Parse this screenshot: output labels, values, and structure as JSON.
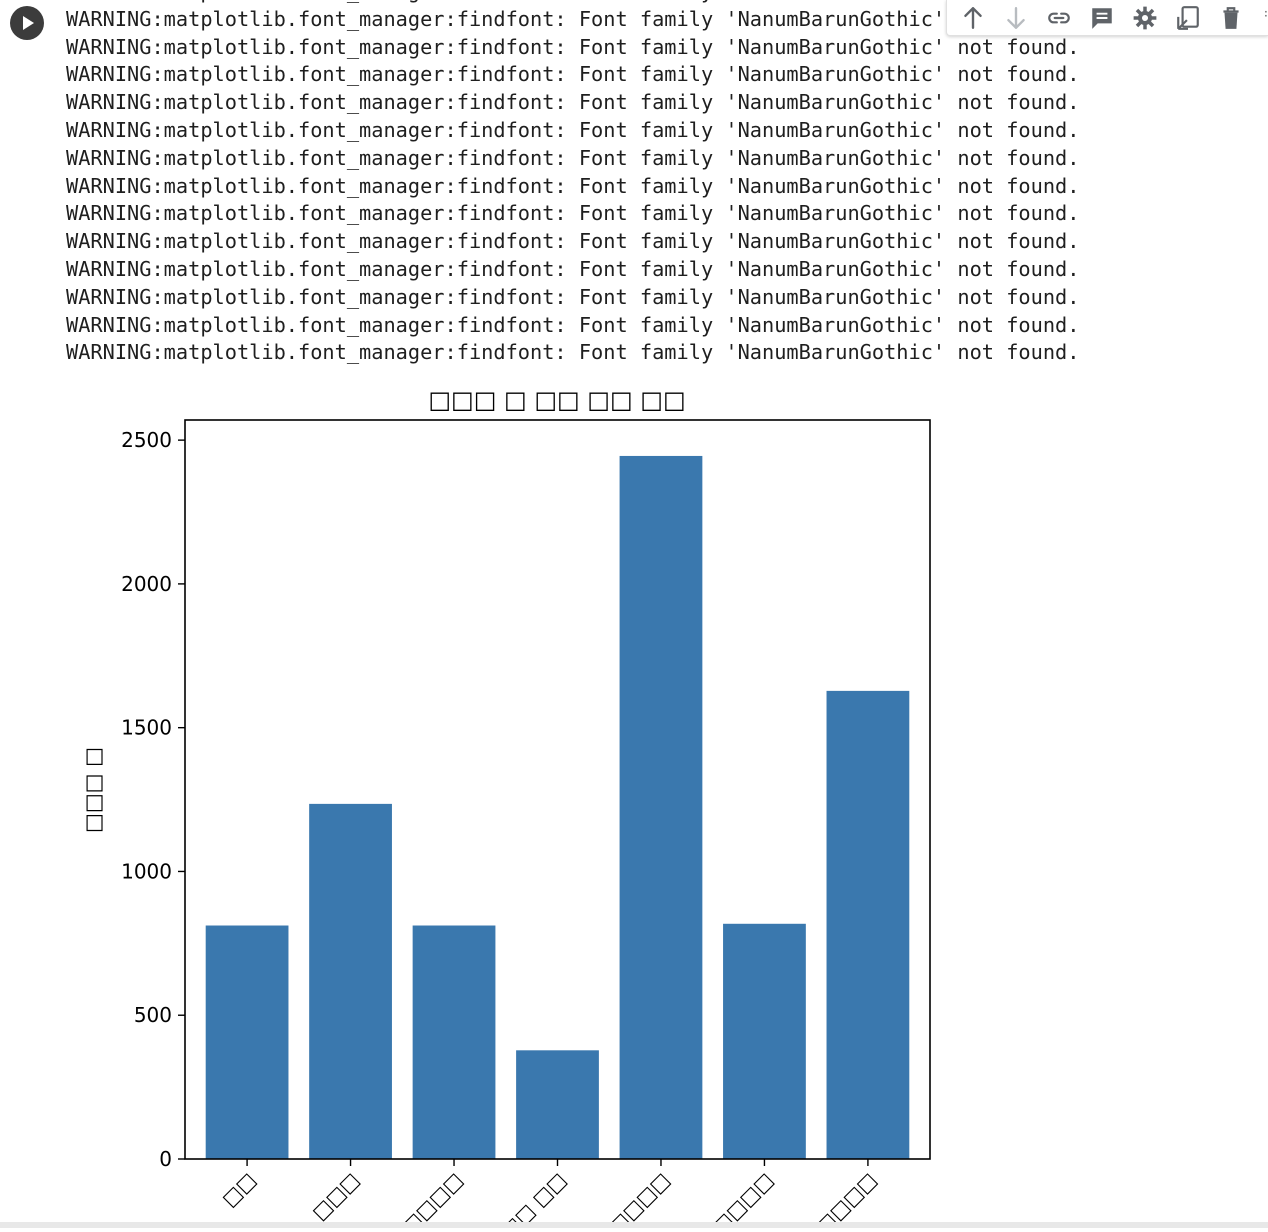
{
  "toolbar": {
    "buttons": [
      {
        "name": "move-up",
        "icon": "arrow-up-icon"
      },
      {
        "name": "move-down",
        "icon": "arrow-down-icon"
      },
      {
        "name": "link",
        "icon": "link-icon"
      },
      {
        "name": "comment",
        "icon": "comment-icon"
      },
      {
        "name": "settings",
        "icon": "gear-icon"
      },
      {
        "name": "mirror-cell",
        "icon": "mirror-icon"
      },
      {
        "name": "delete-cell",
        "icon": "trash-icon"
      }
    ]
  },
  "output": {
    "lines": [
      "WARNING:matplotlib.font_manager:findfont: Font family 'NanumBarunGothic' not found.",
      "WARNING:matplotlib.font_manager:findfont: Font family 'NanumBarunGothic' not found.",
      "WARNING:matplotlib.font_manager:findfont: Font family 'NanumBarunGothic' not found.",
      "WARNING:matplotlib.font_manager:findfont: Font family 'NanumBarunGothic' not found.",
      "WARNING:matplotlib.font_manager:findfont: Font family 'NanumBarunGothic' not found.",
      "WARNING:matplotlib.font_manager:findfont: Font family 'NanumBarunGothic' not found.",
      "WARNING:matplotlib.font_manager:findfont: Font family 'NanumBarunGothic' not found.",
      "WARNING:matplotlib.font_manager:findfont: Font family 'NanumBarunGothic' not found.",
      "WARNING:matplotlib.font_manager:findfont: Font family 'NanumBarunGothic' not found.",
      "WARNING:matplotlib.font_manager:findfont: Font family 'NanumBarunGothic' not found.",
      "WARNING:matplotlib.font_manager:findfont: Font family 'NanumBarunGothic' not found.",
      "WARNING:matplotlib.font_manager:findfont: Font family 'NanumBarunGothic' not found.",
      "WARNING:matplotlib.font_manager:findfont: Font family 'NanumBarunGothic' not found.",
      "WARNING:matplotlib.font_manager:findfont: Font family 'NanumBarunGothic' not found."
    ]
  },
  "chart_data": {
    "type": "bar",
    "title": "□□□ □ □□ □□ □□",
    "xlabel": "",
    "ylabel": "□□□ □",
    "categories": [
      "□□",
      "□□□",
      "□□□□",
      "□□ □□",
      "□□□□",
      "□□□□",
      "□□□□"
    ],
    "values": [
      812,
      1235,
      812,
      378,
      2445,
      818,
      1628
    ],
    "ylim": [
      0,
      2570
    ],
    "yticks": [
      0,
      500,
      1000,
      1500,
      2000,
      2500
    ],
    "bar_color": "#3a78ae",
    "grid": false,
    "legend": "none"
  }
}
